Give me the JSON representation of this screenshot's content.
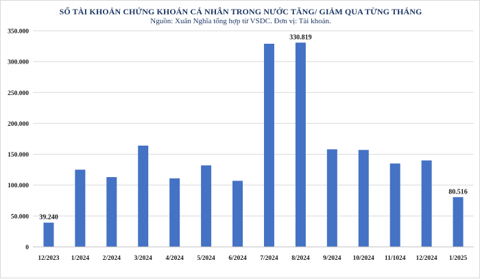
{
  "chart_data": {
    "type": "bar",
    "title": "SỐ TÀI KHOẢN CHỨNG KHOÁN CÁ NHÂN TRONG NƯỚC TĂNG/ GIẢM QUA TỪNG THÁNG",
    "subtitle": "Nguồn: Xuân Nghĩa tổng hợp từ VSDC. Đơn vị: Tài khoản.",
    "xlabel": "",
    "ylabel": "",
    "categories": [
      "12/2023",
      "1/2024",
      "2/2024",
      "3/2024",
      "4/2024",
      "5/2024",
      "6/2024",
      "7/2024",
      "8/2024",
      "9/2024",
      "10/2024",
      "11/1024",
      "12/2024",
      "1/2025"
    ],
    "values": [
      39240,
      125000,
      113000,
      164000,
      111000,
      132000,
      107000,
      329000,
      330819,
      158000,
      157000,
      135000,
      140000,
      80516
    ],
    "data_labels": [
      "39.240",
      "",
      "",
      "",
      "",
      "",
      "",
      "",
      "330.819",
      "",
      "",
      "",
      "",
      "80.516"
    ],
    "ylim": [
      0,
      350000
    ],
    "yticks": [
      0,
      50000,
      100000,
      150000,
      200000,
      250000,
      300000,
      350000
    ],
    "ytick_labels": [
      "0",
      "50.000",
      "100.000",
      "150.000",
      "200.000",
      "250.000",
      "300.000",
      "350.000"
    ],
    "grid": true,
    "legend": "none",
    "bar_color": "#4472c4",
    "grid_color": "#d9d9d9"
  }
}
